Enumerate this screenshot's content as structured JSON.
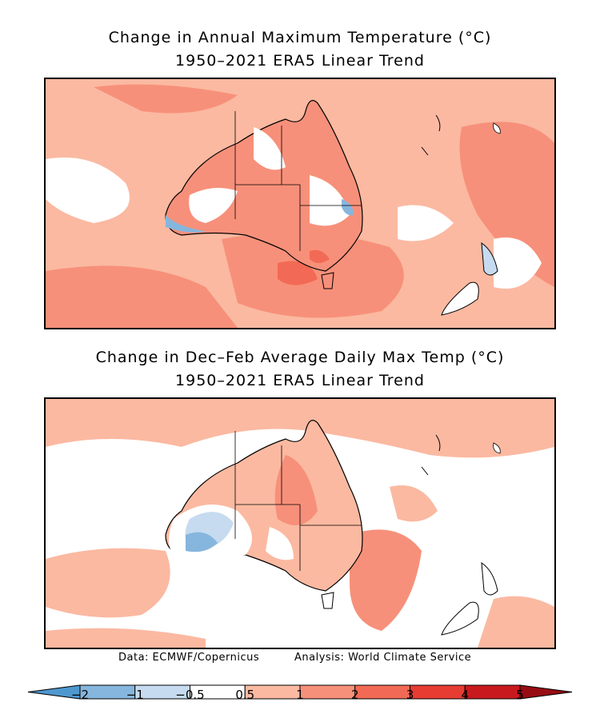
{
  "maps": [
    {
      "title_line1": "Change in Annual Maximum Temperature (°C)",
      "title_line2": "1950–2021 ERA5 Linear Trend"
    },
    {
      "title_line1": "Change in Dec–Feb Average Daily Max Temp (°C)",
      "title_line2": "1950–2021 ERA5 Linear Trend"
    }
  ],
  "credits": {
    "data": "Data: ECMWF/Copernicus",
    "analysis": "Analysis: World Climate Service"
  },
  "colorbar": {
    "bins": [
      {
        "from": null,
        "to": -2,
        "color": "#4f98cf"
      },
      {
        "from": -2,
        "to": -1,
        "color": "#86b6dd"
      },
      {
        "from": -1,
        "to": -0.5,
        "color": "#c6dbef"
      },
      {
        "from": -0.5,
        "to": 0.5,
        "color": "#ffffff"
      },
      {
        "from": 0.5,
        "to": 1,
        "color": "#fbb9a1"
      },
      {
        "from": 1,
        "to": 2,
        "color": "#f7907a"
      },
      {
        "from": 2,
        "to": 3,
        "color": "#f26a55"
      },
      {
        "from": 3,
        "to": 4,
        "color": "#e63c32"
      },
      {
        "from": 4,
        "to": 5,
        "color": "#c81a1e"
      },
      {
        "from": 5,
        "to": null,
        "color": "#980c14"
      }
    ],
    "tick_labels": [
      "−2",
      "−1",
      "−0.5",
      "0.5",
      "1",
      "2",
      "3",
      "4",
      "5"
    ]
  }
}
